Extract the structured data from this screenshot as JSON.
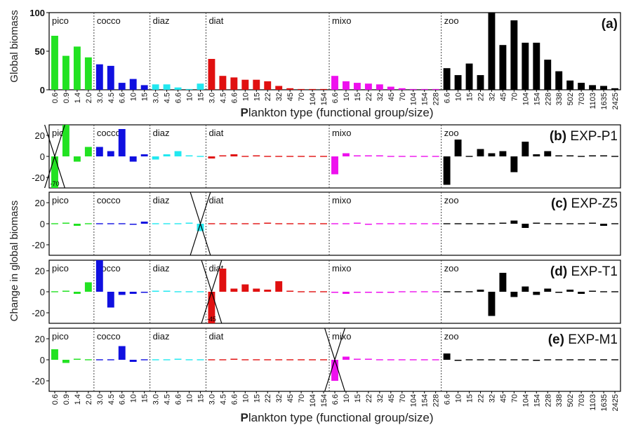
{
  "figure": {
    "xlabel_lead": "P",
    "xlabel_rest": "lankton type (functional group/size)",
    "ylabel_top": "Global biomass",
    "ylabel_bottom": "Change in global biomass",
    "colors": {
      "pico": "#22e222",
      "cocco": "#1010e0",
      "diaz": "#22e8f0",
      "diat": "#e01010",
      "mixo": "#ee10ee",
      "zoo": "#000000"
    }
  },
  "chart_data": [
    {
      "type": "bar",
      "panel": "(a)",
      "title": "",
      "ylabel": "Global biomass",
      "xlabel": "Plankton type (functional group/size)",
      "ylim": [
        0,
        100
      ],
      "yticks": [
        0,
        50,
        100
      ],
      "groups": [
        {
          "name": "pico",
          "color": "#22e222",
          "categories": [
            "0.6",
            "0.9",
            "1.4",
            "2.0"
          ],
          "values": [
            70,
            44,
            56,
            42
          ]
        },
        {
          "name": "cocco",
          "color": "#1010e0",
          "categories": [
            "3.0",
            "4.5",
            "6.6",
            "10",
            "15"
          ],
          "values": [
            33,
            31,
            9,
            14,
            6
          ]
        },
        {
          "name": "diaz",
          "color": "#22e8f0",
          "categories": [
            "3.0",
            "4.5",
            "6.6",
            "10",
            "15"
          ],
          "values": [
            7,
            7,
            3,
            1,
            8
          ]
        },
        {
          "name": "diat",
          "color": "#e01010",
          "categories": [
            "3.0",
            "4.5",
            "6.6",
            "10",
            "15",
            "22",
            "32",
            "45",
            "70",
            "104",
            "154"
          ],
          "values": [
            40,
            18,
            16,
            13,
            13,
            11,
            5,
            2,
            1,
            1,
            1
          ]
        },
        {
          "name": "mixo",
          "color": "#ee10ee",
          "categories": [
            "6.6",
            "10",
            "15",
            "22",
            "32",
            "45",
            "70",
            "104",
            "154",
            "228"
          ],
          "values": [
            18,
            11,
            9,
            8,
            7,
            4,
            2,
            1,
            1,
            1
          ]
        },
        {
          "name": "zoo",
          "color": "#000000",
          "categories": [
            "6.6",
            "10",
            "15",
            "22",
            "32",
            "45",
            "70",
            "104",
            "154",
            "228",
            "338",
            "502",
            "703",
            "1103",
            "1635",
            "2425"
          ],
          "values": [
            28,
            19,
            34,
            19,
            100,
            58,
            90,
            61,
            61,
            39,
            24,
            12,
            9,
            6,
            5,
            2
          ]
        }
      ]
    },
    {
      "type": "bar",
      "panel": "(b)",
      "title": "EXP-P1",
      "ylim": [
        -30,
        30
      ],
      "yticks": [
        -20,
        0,
        20
      ],
      "crossed": [
        "pico 0.6"
      ],
      "annotations": [
        {
          "text": "-70",
          "at": "pico 0.6"
        }
      ],
      "groups": [
        {
          "name": "pico",
          "values": [
            -30,
            30,
            -5,
            9
          ]
        },
        {
          "name": "cocco",
          "values": [
            9,
            5,
            26,
            -5,
            2
          ]
        },
        {
          "name": "diaz",
          "values": [
            -3,
            2,
            5,
            1,
            0
          ]
        },
        {
          "name": "diat",
          "values": [
            -2,
            1,
            2,
            0,
            1,
            0,
            0,
            0,
            0,
            0,
            0
          ]
        },
        {
          "name": "mixo",
          "values": [
            -17,
            3,
            1,
            1,
            1,
            0,
            0,
            0,
            0,
            0
          ]
        },
        {
          "name": "zoo",
          "values": [
            -27,
            16,
            0,
            7,
            3,
            5,
            -15,
            14,
            2,
            5,
            1,
            1,
            0,
            1,
            1,
            0
          ]
        }
      ]
    },
    {
      "type": "bar",
      "panel": "(c)",
      "title": "EXP-Z5",
      "ylim": [
        -30,
        30
      ],
      "yticks": [
        -20,
        0,
        20
      ],
      "crossed": [
        "diaz 15"
      ],
      "groups": [
        {
          "name": "pico",
          "values": [
            0,
            1,
            -2,
            0
          ]
        },
        {
          "name": "cocco",
          "values": [
            0,
            0,
            0,
            -1,
            2
          ]
        },
        {
          "name": "diaz",
          "values": [
            0,
            0,
            0,
            1,
            -7
          ]
        },
        {
          "name": "diat",
          "values": [
            0,
            0,
            0,
            0,
            0,
            1,
            0,
            0,
            0,
            0,
            0
          ]
        },
        {
          "name": "mixo",
          "values": [
            0,
            0,
            1,
            -1,
            0,
            0,
            0,
            0,
            0,
            0
          ]
        },
        {
          "name": "zoo",
          "values": [
            0,
            0,
            0,
            0,
            0,
            1,
            3,
            -4,
            1,
            0,
            0,
            0,
            0,
            1,
            -2,
            0
          ]
        }
      ]
    },
    {
      "type": "bar",
      "panel": "(d)",
      "title": "EXP-T1",
      "ylim": [
        -30,
        30
      ],
      "yticks": [
        -20,
        0,
        20
      ],
      "crossed": [
        "diat 3.0"
      ],
      "annotations": [
        {
          "text": "-45",
          "at": "diat 3.0"
        }
      ],
      "groups": [
        {
          "name": "pico",
          "values": [
            0,
            1,
            -2,
            9
          ]
        },
        {
          "name": "cocco",
          "values": [
            30,
            -15,
            -3,
            -2,
            -1
          ]
        },
        {
          "name": "diaz",
          "values": [
            1,
            1,
            0,
            0,
            0
          ]
        },
        {
          "name": "diat",
          "values": [
            -30,
            22,
            3,
            7,
            3,
            2,
            10,
            1,
            0,
            0,
            0
          ]
        },
        {
          "name": "mixo",
          "values": [
            -1,
            -2,
            -1,
            -1,
            -1,
            -1,
            0,
            0,
            0,
            0
          ]
        },
        {
          "name": "zoo",
          "values": [
            0,
            0,
            0,
            2,
            -23,
            18,
            -5,
            5,
            -3,
            3,
            -1,
            2,
            -2,
            1,
            0,
            0
          ]
        }
      ]
    },
    {
      "type": "bar",
      "panel": "(e)",
      "title": "EXP-M1",
      "ylim": [
        -30,
        30
      ],
      "yticks": [
        -20,
        0,
        20
      ],
      "crossed": [
        "mixo 6.6"
      ],
      "groups": [
        {
          "name": "pico",
          "values": [
            10,
            -3,
            1,
            0
          ]
        },
        {
          "name": "cocco",
          "values": [
            0,
            0,
            13,
            -2,
            0
          ]
        },
        {
          "name": "diaz",
          "values": [
            0,
            0,
            1,
            0,
            0
          ]
        },
        {
          "name": "diat",
          "values": [
            0,
            0,
            1,
            0,
            0,
            0,
            0,
            0,
            0,
            0,
            0
          ]
        },
        {
          "name": "mixo",
          "values": [
            -20,
            3,
            1,
            1,
            0,
            0,
            0,
            0,
            0,
            0
          ]
        },
        {
          "name": "zoo",
          "values": [
            6,
            -1,
            0,
            0,
            0,
            0,
            0,
            0,
            -1,
            0,
            0,
            0,
            0,
            0,
            0,
            0
          ]
        }
      ]
    }
  ]
}
